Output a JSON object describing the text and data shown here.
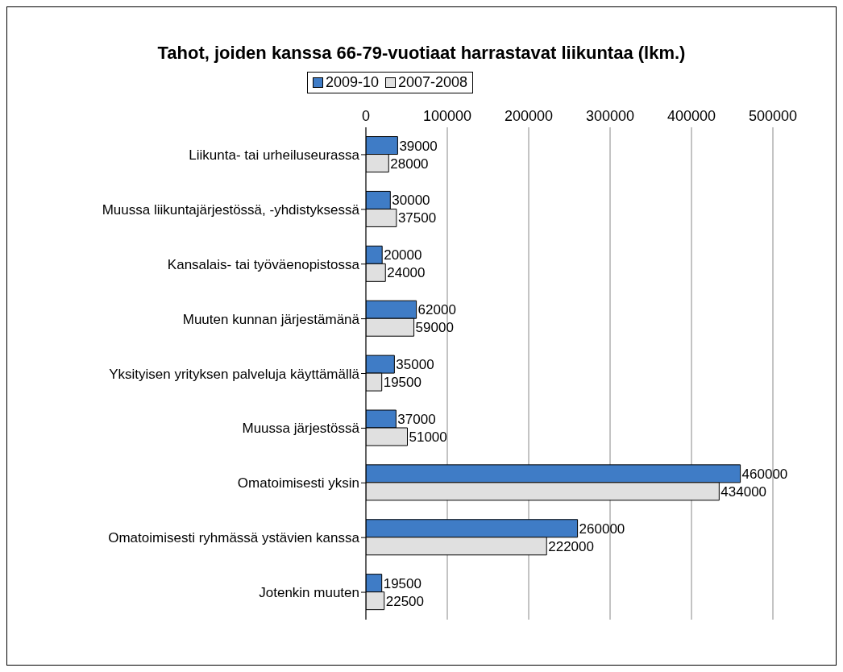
{
  "chart_data": {
    "type": "bar",
    "orientation": "horizontal",
    "title": "Tahot, joiden kanssa 66-79-vuotiaat harrastavat liikuntaa (lkm.)",
    "categories": [
      "Liikunta- tai urheiluseurassa",
      "Muussa liikuntajärjestössä, -yhdistyksessä",
      "Kansalais- tai työväenopistossa",
      "Muuten kunnan järjestämänä",
      "Yksityisen yrityksen palveluja käyttämällä",
      "Muussa järjestössä",
      "Omatoimisesti yksin",
      "Omatoimisesti ryhmässä ystävien kanssa",
      "Jotenkin muuten"
    ],
    "series": [
      {
        "name": "2009-10",
        "color": "#3f7cc6",
        "values": [
          39000,
          30000,
          20000,
          62000,
          35000,
          37000,
          460000,
          260000,
          19500
        ]
      },
      {
        "name": "2007-2008",
        "color": "#e0e0e0",
        "values": [
          28000,
          37500,
          24000,
          59000,
          19500,
          51000,
          434000,
          222000,
          22500
        ]
      }
    ],
    "xlim": [
      0,
      500000
    ],
    "xticks": [
      0,
      100000,
      200000,
      300000,
      400000,
      500000
    ],
    "grid": "x",
    "legend": "top",
    "data_labels": true
  }
}
